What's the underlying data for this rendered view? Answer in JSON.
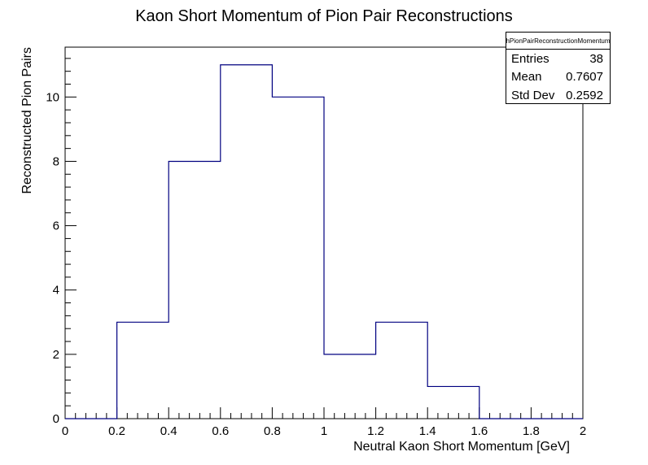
{
  "chart_data": {
    "type": "histogram",
    "title": "Kaon Short Momentum of Pion Pair Reconstructions",
    "xlabel": "Neutral Kaon Short Momentum [GeV]",
    "ylabel": "Reconstructed Pion Pairs",
    "xlim": [
      0,
      2
    ],
    "ylim": [
      0,
      11.55
    ],
    "bins": [
      {
        "low": 0.0,
        "high": 0.2,
        "count": 0
      },
      {
        "low": 0.2,
        "high": 0.4,
        "count": 3
      },
      {
        "low": 0.4,
        "high": 0.6,
        "count": 8
      },
      {
        "low": 0.6,
        "high": 0.8,
        "count": 11
      },
      {
        "low": 0.8,
        "high": 1.0,
        "count": 10
      },
      {
        "low": 1.0,
        "high": 1.2,
        "count": 2
      },
      {
        "low": 1.2,
        "high": 1.4,
        "count": 3
      },
      {
        "low": 1.4,
        "high": 1.6,
        "count": 1
      },
      {
        "low": 1.6,
        "high": 1.8,
        "count": 0
      },
      {
        "low": 1.8,
        "high": 2.0,
        "count": 0
      }
    ],
    "x_ticks": [
      "0",
      "0.2",
      "0.4",
      "0.6",
      "0.8",
      "1",
      "1.2",
      "1.4",
      "1.6",
      "1.8",
      "2"
    ],
    "y_ticks": [
      "0",
      "2",
      "4",
      "6",
      "8",
      "10"
    ],
    "line_color": "#000080",
    "grid": false
  },
  "stats": {
    "name": "hPionPairReconstructionMomentum",
    "rows": [
      {
        "label": "Entries",
        "value": "38"
      },
      {
        "label": "Mean",
        "value": "0.7607"
      },
      {
        "label": "Std Dev",
        "value": "0.2592"
      }
    ]
  }
}
